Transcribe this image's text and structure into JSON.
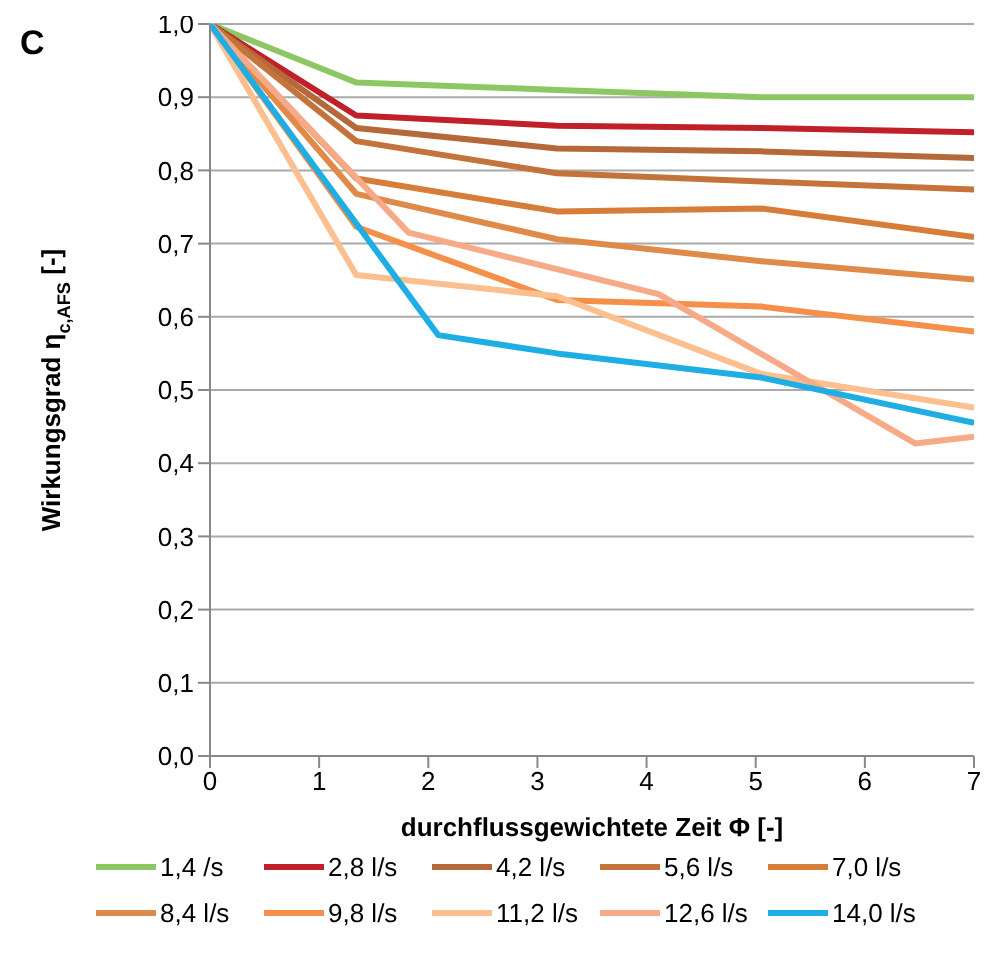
{
  "chart_data": {
    "type": "line",
    "title": "C",
    "xlabel": "durchflussgewichtete  Zeit Φ [-]",
    "ylabel": "Wirkungsgrad η$_{c,AFS}$ [-]",
    "xlim": [
      0,
      7
    ],
    "xticks": [
      0,
      1,
      2,
      3,
      4,
      5,
      6,
      7
    ],
    "ylim": [
      0,
      1
    ],
    "yticks": [
      {
        "value": 0,
        "label": "0,0"
      },
      {
        "value": 0.1,
        "label": "0,1"
      },
      {
        "value": 0.2,
        "label": "0,2"
      },
      {
        "value": 0.3,
        "label": "0,3"
      },
      {
        "value": 0.4,
        "label": "0,4"
      },
      {
        "value": 0.5,
        "label": "0,5"
      },
      {
        "value": 0.6,
        "label": "0,6"
      },
      {
        "value": 0.7,
        "label": "0,7"
      },
      {
        "value": 0.8,
        "label": "0,8"
      },
      {
        "value": 0.9,
        "label": "0,9"
      },
      {
        "value": 1,
        "label": "1,0"
      }
    ],
    "grid": "y",
    "legend": "bottom",
    "marker": "none",
    "line_style": "solid",
    "series": [
      {
        "name": "1,4 /s",
        "color": "#8cc763",
        "x": [
          0,
          1.34,
          3.18,
          5.05,
          7
        ],
        "values": [
          1.0,
          0.92,
          0.91,
          0.9,
          0.9
        ]
      },
      {
        "name": "2,8 l/s",
        "color": "#c0202a",
        "x": [
          0,
          1.34,
          3.18,
          5.05,
          7
        ],
        "values": [
          1.0,
          0.875,
          0.861,
          0.858,
          0.852
        ]
      },
      {
        "name": "4,2 l/s",
        "color": "#b5683a",
        "x": [
          0,
          1.34,
          3.18,
          5.05,
          7
        ],
        "values": [
          1.0,
          0.858,
          0.83,
          0.826,
          0.817
        ]
      },
      {
        "name": "5,6 l/s",
        "color": "#c4733a",
        "x": [
          0,
          1.34,
          3.18,
          5.05,
          7
        ],
        "values": [
          1.0,
          0.84,
          0.796,
          0.785,
          0.774
        ]
      },
      {
        "name": "7,0 l/s",
        "color": "#d67d3a",
        "x": [
          0,
          1.34,
          3.18,
          5.05,
          7
        ],
        "values": [
          1.0,
          0.789,
          0.744,
          0.748,
          0.709
        ]
      },
      {
        "name": "8,4 l/s",
        "color": "#e08a4a",
        "x": [
          0,
          1.34,
          3.18,
          5.05,
          7
        ],
        "values": [
          1.0,
          0.768,
          0.706,
          0.676,
          0.651
        ]
      },
      {
        "name": "9,8 l/s",
        "color": "#f5904a",
        "x": [
          0,
          1.34,
          3.18,
          5.05,
          7
        ],
        "values": [
          1.0,
          0.723,
          0.623,
          0.614,
          0.58
        ]
      },
      {
        "name": "11,2 l/s",
        "color": "#fbbf90",
        "x": [
          0,
          1.34,
          3.18,
          5.05,
          7
        ],
        "values": [
          1.0,
          0.657,
          0.628,
          0.522,
          0.476
        ]
      },
      {
        "name": "12,6 l/s",
        "color": "#f7aa88",
        "x": [
          0,
          1.82,
          4.11,
          6.46,
          7
        ],
        "values": [
          1.0,
          0.715,
          0.631,
          0.427,
          0.436
        ]
      },
      {
        "name": "14,0 l/s",
        "color": "#1faee3",
        "x": [
          0,
          2.09,
          3.18,
          5.05,
          7
        ],
        "values": [
          1.0,
          0.575,
          0.55,
          0.517,
          0.455
        ]
      }
    ]
  }
}
